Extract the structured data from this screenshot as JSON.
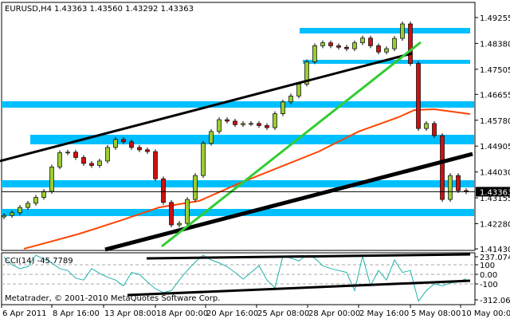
{
  "header": {
    "symbol_label": "EURUSD,H4",
    "ohlc_text": "1.43363 1.43560 1.43292 1.43363"
  },
  "indicator": {
    "label": "CCI(14) -45.7789"
  },
  "copyright": "Metatrader, © 2001-2010 MetaQuotes Software Corp.",
  "colors": {
    "background": "#ffffff",
    "bull_candle": "#9acd32",
    "bear_candle": "#cc1111",
    "zone": "#00bfff",
    "moving_average": "#ff4500",
    "green_trendline": "#32cd32",
    "black_trendline": "#000000",
    "cci_line": "#20b2aa",
    "grid_dash": "#aaaaaa"
  },
  "chart_data": [
    {
      "type": "candlestick",
      "title": "EURUSD,H4",
      "ylim": [
        1.4143,
        1.49255
      ],
      "grid": false,
      "y_ticks": [
        "1.49255",
        "1.48380",
        "1.47505",
        "1.46655",
        "1.45780",
        "1.44905",
        "1.44030",
        "1.43155",
        "1.42280",
        "1.41430"
      ],
      "current_price": "1.43363",
      "x_ticks": [
        {
          "bar": -0.3,
          "label": "6 Apr 2011"
        },
        {
          "bar": 6,
          "label": "8 Apr 16:00"
        },
        {
          "bar": 12.5,
          "label": "13 Apr 08:00"
        },
        {
          "bar": 19,
          "label": "18 Apr 00:00"
        },
        {
          "bar": 25.3,
          "label": "20 Apr 16:00"
        },
        {
          "bar": 31.7,
          "label": "25 Apr 08:00"
        },
        {
          "bar": 38.1,
          "label": "28 Apr 00:00"
        },
        {
          "bar": 44.5,
          "label": "2 May 16:00"
        },
        {
          "bar": 51,
          "label": "5 May 08:00"
        },
        {
          "bar": 57.3,
          "label": "10 May 00:00"
        }
      ],
      "close": [
        1.4256,
        1.4265,
        1.4283,
        1.4297,
        1.4317,
        1.4337,
        1.442,
        1.4468,
        1.447,
        1.4452,
        1.4432,
        1.4425,
        1.444,
        1.4486,
        1.4513,
        1.4505,
        1.4486,
        1.4478,
        1.4472,
        1.438,
        1.43,
        1.4224,
        1.4229,
        1.431,
        1.4391,
        1.45,
        1.454,
        1.458,
        1.4575,
        1.4563,
        1.4567,
        1.4567,
        1.456,
        1.4553,
        1.46,
        1.464,
        1.466,
        1.47,
        1.4776,
        1.483,
        1.484,
        1.483,
        1.4825,
        1.482,
        1.484,
        1.4856,
        1.483,
        1.4809,
        1.482,
        1.4855,
        1.4904,
        1.477,
        1.455,
        1.4567,
        1.4526,
        1.431,
        1.4391,
        1.434,
        1.43363
      ],
      "moving_average": [
        [
          2.5,
          1.41431
        ],
        [
          5.5,
          1.41647
        ],
        [
          9.5,
          1.41943
        ],
        [
          14.5,
          1.42375
        ],
        [
          19.5,
          1.42834
        ],
        [
          24.5,
          1.4305
        ],
        [
          29.5,
          1.43643
        ],
        [
          32.5,
          1.43967
        ],
        [
          39.5,
          1.44722
        ],
        [
          44.5,
          1.45397
        ],
        [
          49.5,
          1.45882
        ],
        [
          51.5,
          1.46125
        ],
        [
          54,
          1.46152
        ],
        [
          58.5,
          1.4599
        ]
      ],
      "zones": [
        {
          "from": 37.1,
          "to": 58.5,
          "top": 1.48904,
          "bottom": 1.48715
        },
        {
          "from": 37.5,
          "to": 58.5,
          "top": 1.47825,
          "bottom": 1.4769
        },
        {
          "from": -0.5,
          "to": 59,
          "top": 1.46422,
          "bottom": 1.46206
        },
        {
          "from": 3.3,
          "to": 59,
          "top": 1.45289,
          "bottom": 1.44965
        },
        {
          "from": -0.5,
          "to": 59,
          "top": 1.43751,
          "bottom": 1.43508
        },
        {
          "from": -0.5,
          "to": 59,
          "top": 1.4278,
          "bottom": 1.42537
        }
      ],
      "trendlines": [
        {
          "style": "black",
          "from": [
            -0.5,
            1.44399
          ],
          "to": [
            51.2,
            1.48041
          ]
        },
        {
          "style": "black-thick",
          "from": [
            12.7,
            1.41404
          ],
          "to": [
            58.8,
            1.44641
          ]
        },
        {
          "style": "green",
          "from": [
            19.8,
            1.41512
          ],
          "to": [
            52.3,
            1.48419
          ]
        }
      ]
    },
    {
      "type": "line",
      "title": "CCI(14) -45.7789",
      "ylim": [
        -312.065,
        237.0743
      ],
      "y_ticks": [
        "237.0743",
        "100",
        "0.00",
        "-100",
        "-312.065"
      ],
      "levels": [
        100,
        0,
        -100
      ],
      "values": [
        180,
        100,
        60,
        80,
        200,
        160,
        120,
        60,
        40,
        -40,
        -60,
        60,
        10,
        -30,
        -60,
        -120,
        20,
        0,
        -80,
        -150,
        -190,
        -170,
        -60,
        40,
        130,
        200,
        150,
        120,
        80,
        20,
        -50,
        20,
        90,
        -60,
        -140,
        190,
        170,
        140,
        200,
        170,
        90,
        60,
        40,
        20,
        -170,
        190,
        -120,
        40,
        -60,
        150,
        20,
        40,
        -280,
        -170,
        -100,
        -120,
        -90,
        -80,
        -45.7789
      ],
      "trendlines": [
        {
          "from": [
            17.9,
            167
          ],
          "to": [
            58.5,
            208
          ]
        },
        {
          "from": [
            15.5,
            -217
          ],
          "to": [
            58.5,
            -67
          ]
        }
      ]
    }
  ]
}
